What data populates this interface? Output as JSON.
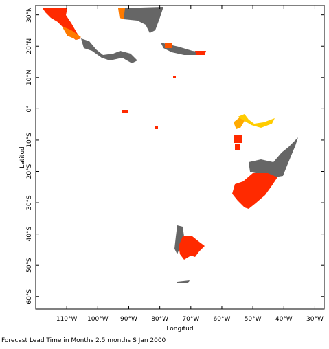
{
  "chart_data": {
    "type": "map",
    "xlabel": "Longitud",
    "ylabel": "Latitud",
    "caption": "Forecast Lead Time in Months 2.5 months S Jan 2000",
    "xlim": [
      -120,
      -27
    ],
    "ylim": [
      -64,
      33
    ],
    "xticks": [
      {
        "value": -110,
        "label": "110°W"
      },
      {
        "value": -100,
        "label": "100°W"
      },
      {
        "value": -90,
        "label": "90°W"
      },
      {
        "value": -80,
        "label": "80°W"
      },
      {
        "value": -70,
        "label": "70°W"
      },
      {
        "value": -60,
        "label": "60°W"
      },
      {
        "value": -50,
        "label": "50°W"
      },
      {
        "value": -40,
        "label": "40°W"
      },
      {
        "value": -30,
        "label": "30°W"
      }
    ],
    "yticks": [
      {
        "value": 30,
        "label": "30°N"
      },
      {
        "value": 20,
        "label": "20°N"
      },
      {
        "value": 10,
        "label": "10°N"
      },
      {
        "value": 0,
        "label": "0°"
      },
      {
        "value": -10,
        "label": "10°S"
      },
      {
        "value": -20,
        "label": "20°S"
      },
      {
        "value": -30,
        "label": "30°S"
      },
      {
        "value": -40,
        "label": "40°S"
      },
      {
        "value": -50,
        "label": "50°S"
      },
      {
        "value": -60,
        "label": "60°S"
      }
    ]
  }
}
